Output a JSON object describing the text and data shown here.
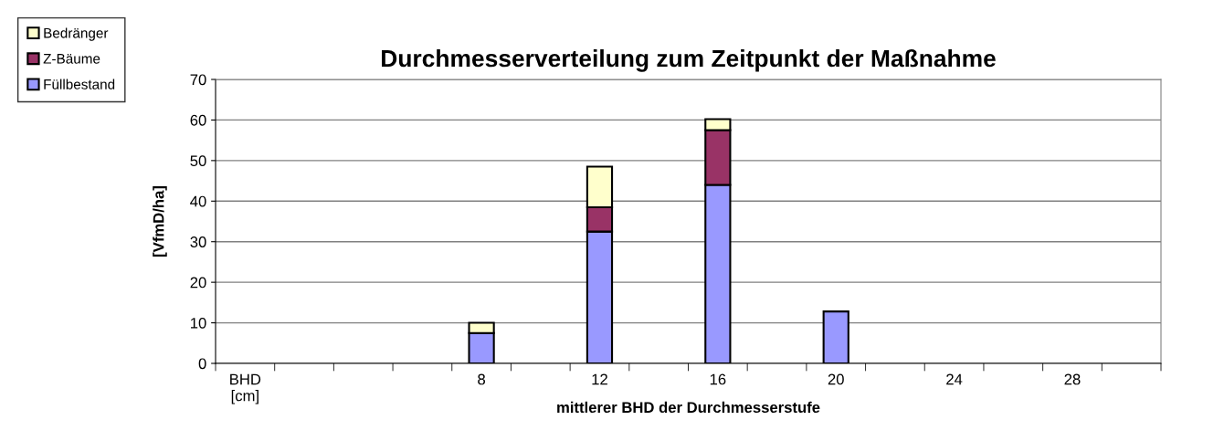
{
  "chart_data": {
    "type": "bar",
    "title": "Durchmesserverteilung zum Zeitpunkt der Maßnahme",
    "xlabel": "mittlerer BHD der Durchmesserstufe",
    "ylabel": "[VfmD/ha]",
    "categories": [
      "BHD\n[cm]",
      null,
      null,
      null,
      "8",
      null,
      "12",
      null,
      "16",
      null,
      "20",
      null,
      "24",
      null,
      "28",
      null
    ],
    "stacked": true,
    "series": [
      {
        "name": "Füllbestand",
        "color": "#9999ff",
        "values": [
          null,
          null,
          null,
          null,
          7.5,
          null,
          32.5,
          null,
          44,
          null,
          12.8,
          null,
          null,
          null,
          null,
          null
        ]
      },
      {
        "name": "Z-Bäume",
        "color": "#993366",
        "values": [
          null,
          null,
          null,
          null,
          null,
          null,
          6,
          null,
          13.5,
          null,
          null,
          null,
          null,
          null,
          null,
          null
        ]
      },
      {
        "name": "Bedränger",
        "color": "#ffffcc",
        "values": [
          null,
          null,
          null,
          null,
          2.5,
          null,
          10,
          null,
          2.7,
          null,
          null,
          null,
          null,
          null,
          null,
          null
        ]
      }
    ],
    "ylim": [
      0,
      70
    ],
    "yticks": [
      0,
      10,
      20,
      30,
      40,
      50,
      60,
      70
    ],
    "grid": "y",
    "legend": "top left"
  }
}
